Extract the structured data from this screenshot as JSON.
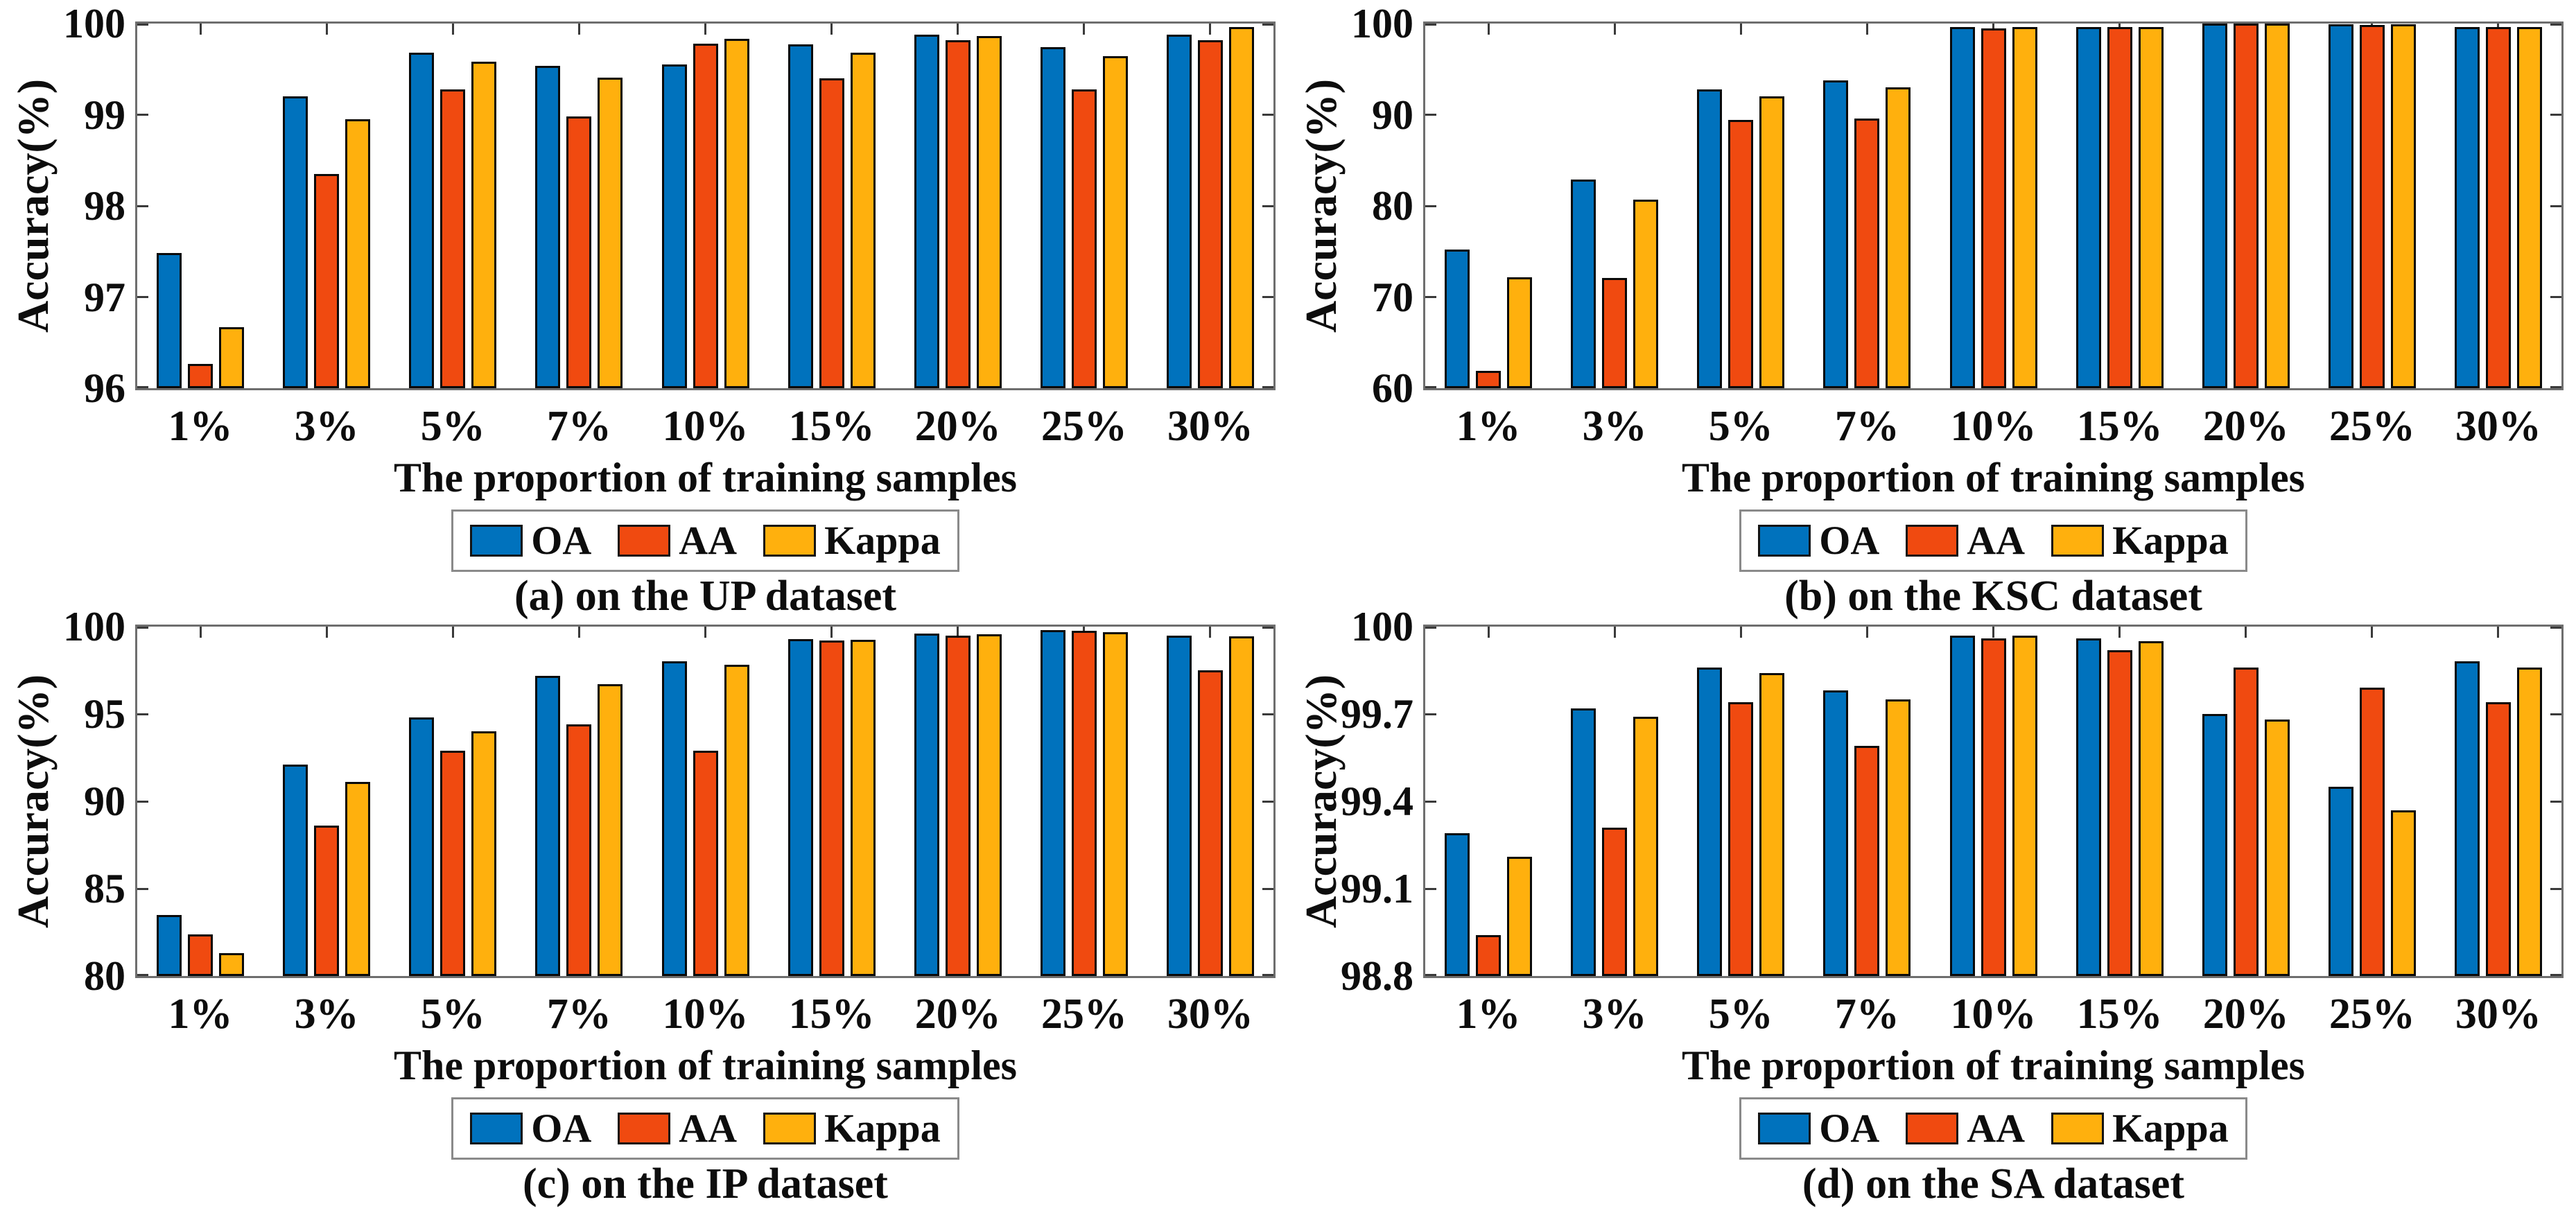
{
  "figure": {
    "ylabel": "Accuracy(%)",
    "xlabel": "The proportion of training samples",
    "categories": [
      "1%",
      "3%",
      "5%",
      "7%",
      "10%",
      "15%",
      "20%",
      "25%",
      "30%"
    ],
    "legend_entries": [
      {
        "label": "OA",
        "color": "#0072BD"
      },
      {
        "label": "AA",
        "color": "#F04A10"
      },
      {
        "label": "Kappa",
        "color": "#FFB00D"
      }
    ],
    "colors": {
      "axis_box": "#6e6e6e",
      "tick": "#3a3a3a",
      "text": "#0d0d0d",
      "bar_edge": "#0a0a0a",
      "legend_border": "#8a8a8a"
    }
  },
  "chart_data": [
    {
      "id": "a",
      "type": "bar",
      "title": "(a) on the UP dataset",
      "xlabel": "The proportion of training samples",
      "ylabel": "Accuracy(%)",
      "legend_position": "below",
      "grid": false,
      "categories": [
        "1%",
        "3%",
        "5%",
        "7%",
        "10%",
        "15%",
        "20%",
        "25%",
        "30%"
      ],
      "ylim": [
        96,
        100
      ],
      "ytick_labels": [
        "96",
        "97",
        "98",
        "99",
        "100"
      ],
      "series": [
        {
          "name": "OA",
          "values": [
            97.48,
            99.2,
            99.68,
            99.54,
            99.55,
            99.77,
            99.88,
            99.74,
            99.88
          ]
        },
        {
          "name": "AA",
          "values": [
            96.27,
            98.35,
            99.28,
            98.98,
            99.78,
            99.4,
            99.82,
            99.28,
            99.82
          ]
        },
        {
          "name": "Kappa",
          "values": [
            96.67,
            98.95,
            99.58,
            99.41,
            99.83,
            99.68,
            99.86,
            99.64,
            99.96
          ]
        }
      ]
    },
    {
      "id": "b",
      "type": "bar",
      "title": "(b) on the KSC dataset",
      "xlabel": "The proportion of training samples",
      "ylabel": "Accuracy(%)",
      "legend_position": "below",
      "grid": false,
      "categories": [
        "1%",
        "3%",
        "5%",
        "7%",
        "10%",
        "15%",
        "20%",
        "25%",
        "30%"
      ],
      "ylim": [
        60,
        100
      ],
      "ytick_labels": [
        "60",
        "70",
        "80",
        "90",
        "100"
      ],
      "series": [
        {
          "name": "OA",
          "values": [
            75.2,
            82.9,
            92.8,
            93.8,
            99.6,
            99.65,
            99.98,
            99.9,
            99.65
          ]
        },
        {
          "name": "AA",
          "values": [
            61.9,
            72.1,
            89.4,
            89.6,
            99.5,
            99.6,
            99.98,
            99.85,
            99.6
          ]
        },
        {
          "name": "Kappa",
          "values": [
            72.2,
            80.7,
            92.0,
            93.0,
            99.6,
            99.65,
            99.98,
            99.9,
            99.65
          ]
        }
      ]
    },
    {
      "id": "c",
      "type": "bar",
      "title": "(c) on the IP dataset",
      "xlabel": "The proportion of training samples",
      "ylabel": "Accuracy(%)",
      "legend_position": "below",
      "grid": false,
      "categories": [
        "1%",
        "3%",
        "5%",
        "7%",
        "10%",
        "15%",
        "20%",
        "25%",
        "30%"
      ],
      "ylim": [
        80,
        100
      ],
      "ytick_labels": [
        "80",
        "85",
        "90",
        "95",
        "100"
      ],
      "series": [
        {
          "name": "OA",
          "values": [
            83.5,
            92.1,
            94.8,
            97.2,
            98.0,
            99.3,
            99.6,
            99.8,
            99.5
          ]
        },
        {
          "name": "AA",
          "values": [
            82.4,
            88.6,
            92.9,
            94.4,
            92.9,
            99.2,
            99.5,
            99.75,
            97.5
          ]
        },
        {
          "name": "Kappa",
          "values": [
            81.3,
            91.1,
            94.0,
            96.7,
            97.8,
            99.25,
            99.55,
            99.7,
            99.45
          ]
        }
      ]
    },
    {
      "id": "d",
      "type": "bar",
      "title": "(d) on the SA dataset",
      "xlabel": "The proportion of training samples",
      "ylabel": "Accuracy(%)",
      "legend_position": "below",
      "grid": false,
      "categories": [
        "1%",
        "3%",
        "5%",
        "7%",
        "10%",
        "15%",
        "20%",
        "25%",
        "30%"
      ],
      "ylim": [
        98.8,
        100
      ],
      "ytick_labels": [
        "98.8",
        "99.1",
        "99.4",
        "99.7",
        "100"
      ],
      "series": [
        {
          "name": "OA",
          "values": [
            99.29,
            99.72,
            99.86,
            99.78,
            99.97,
            99.96,
            99.7,
            99.45,
            99.88
          ]
        },
        {
          "name": "AA",
          "values": [
            98.94,
            99.31,
            99.74,
            99.59,
            99.96,
            99.92,
            99.86,
            99.79,
            99.74
          ]
        },
        {
          "name": "Kappa",
          "values": [
            99.21,
            99.69,
            99.84,
            99.75,
            99.97,
            99.95,
            99.68,
            99.37,
            99.86
          ]
        }
      ]
    }
  ]
}
